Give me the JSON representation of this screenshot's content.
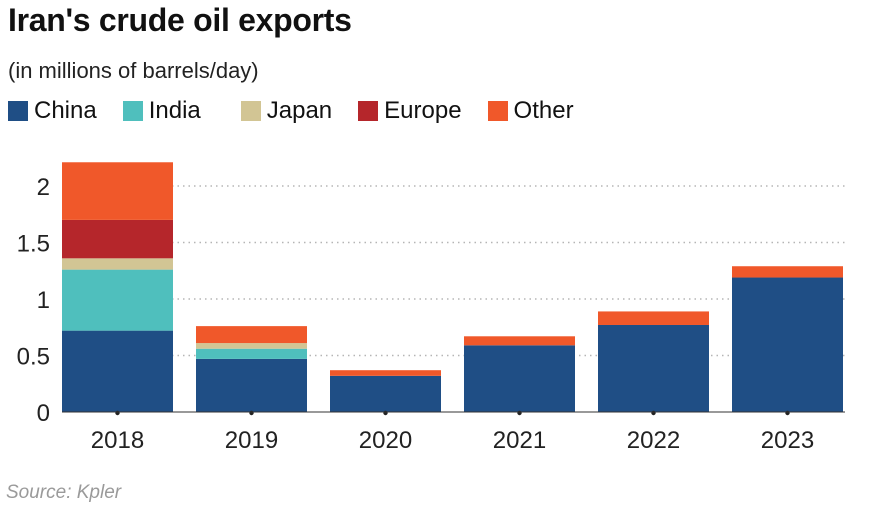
{
  "title": "Iran's crude oil exports",
  "subtitle": "(in millions of barrels/day)",
  "source": "Source: Kpler",
  "colors": {
    "China": "#1f4e85",
    "India": "#4fbfbd",
    "Japan": "#d2c594",
    "Europe": "#b5262b",
    "Other": "#f0582a"
  },
  "chart_data": {
    "type": "bar",
    "stacked": true,
    "categories": [
      "2018",
      "2019",
      "2020",
      "2021",
      "2022",
      "2023"
    ],
    "series": [
      {
        "name": "China",
        "values": [
          0.72,
          0.47,
          0.32,
          0.59,
          0.77,
          1.19
        ]
      },
      {
        "name": "India",
        "values": [
          0.54,
          0.09,
          0.0,
          0.0,
          0.0,
          0.0
        ]
      },
      {
        "name": "Japan",
        "values": [
          0.1,
          0.05,
          0.0,
          0.0,
          0.0,
          0.0
        ]
      },
      {
        "name": "Europe",
        "values": [
          0.34,
          0.0,
          0.0,
          0.0,
          0.0,
          0.0
        ]
      },
      {
        "name": "Other",
        "values": [
          0.51,
          0.15,
          0.05,
          0.08,
          0.12,
          0.1
        ]
      }
    ],
    "yticks": [
      "0",
      "0.5",
      "1",
      "1.5",
      "2"
    ],
    "ylim": [
      0,
      2.25
    ],
    "grid": true,
    "legend": "top"
  }
}
